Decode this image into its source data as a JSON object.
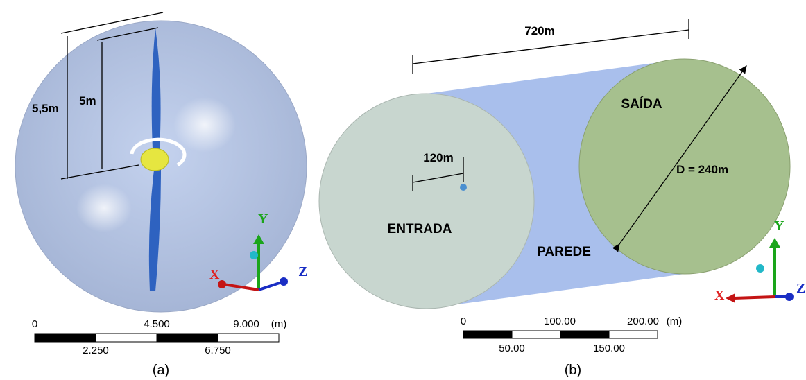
{
  "panel_a": {
    "dimensions": [
      "5,5m",
      "5m"
    ],
    "scale": {
      "top": [
        "0",
        "4.500",
        "9.000"
      ],
      "unit": "(m)",
      "bottom": [
        "2.250",
        "6.750"
      ]
    },
    "axes": {
      "x": "X",
      "y": "Y",
      "z": "Z"
    },
    "caption": "(a)"
  },
  "panel_b": {
    "length": "720m",
    "offset": "120m",
    "diameter": "D = 240m",
    "regions": {
      "outlet": "SAÍDA",
      "inlet": "ENTRADA",
      "wall": "PAREDE"
    },
    "scale": {
      "top": [
        "0",
        "100.00",
        "200.00"
      ],
      "unit": "(m)",
      "bottom": [
        "50.00",
        "150.00"
      ]
    },
    "axes": {
      "x": "X",
      "y": "Y",
      "z": "Z"
    },
    "caption": "(b)"
  }
}
